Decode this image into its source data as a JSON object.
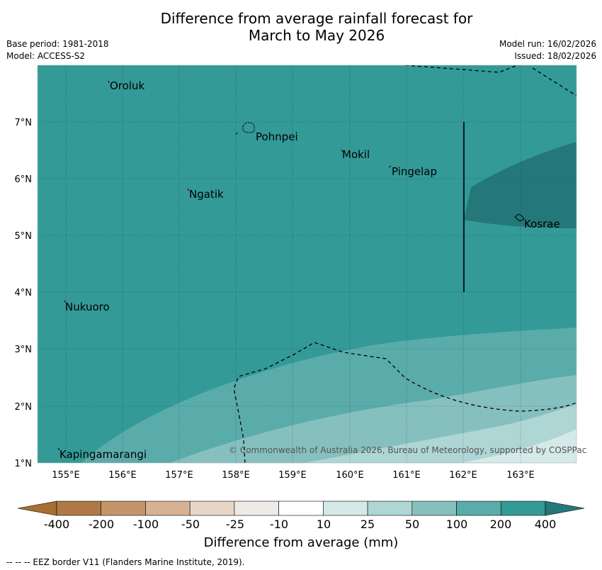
{
  "title": {
    "line1": "Difference from average rainfall forecast for",
    "line2": "March to May 2026"
  },
  "meta": {
    "base_period": "Base period: 1981-2018",
    "model": "Model: ACCESS-S2",
    "model_run": "Model run: 16/02/2026",
    "issued": "Issued: 18/02/2026"
  },
  "map": {
    "places": [
      {
        "name": "Oroluk"
      },
      {
        "name": "Pohnpei"
      },
      {
        "name": "Mokil"
      },
      {
        "name": "Pingelap"
      },
      {
        "name": "Ngatik"
      },
      {
        "name": "Kosrae"
      },
      {
        "name": "Nukuoro"
      },
      {
        "name": "Kapingamarangi"
      }
    ],
    "lat_labels": [
      "7°N",
      "6°N",
      "5°N",
      "4°N",
      "3°N",
      "2°N",
      "1°N"
    ],
    "lon_labels": [
      "155°E",
      "156°E",
      "157°E",
      "158°E",
      "159°E",
      "160°E",
      "161°E",
      "162°E",
      "163°E"
    ],
    "copyright": "© Commonwealth of Australia 2026, Bureau of Meteorology, supported by COSPPac",
    "colors": {
      "band_200_400": "#339a97",
      "band_400_plus": "#25787a",
      "band_100_200": "#5aacaa",
      "band_50_100": "#86c0be",
      "band_25_50": "#aed6d4",
      "band_10_25": "#d4e9e8"
    }
  },
  "colorbar": {
    "ticks": [
      "-400",
      "-200",
      "-100",
      "-50",
      "-25",
      "-10",
      "10",
      "25",
      "50",
      "100",
      "200",
      "400"
    ],
    "colors": [
      "#a86f34",
      "#af7a46",
      "#c49569",
      "#d6b293",
      "#e7d6c8",
      "#eeeae6",
      "#ffffff",
      "#d4e9e8",
      "#aed6d4",
      "#86c0be",
      "#5aacaa",
      "#339a97",
      "#25787a"
    ],
    "title": "Difference from average (mm)"
  },
  "footer": "--  --  -- EEZ border V11 (Flanders Marine Institute, 2019)."
}
